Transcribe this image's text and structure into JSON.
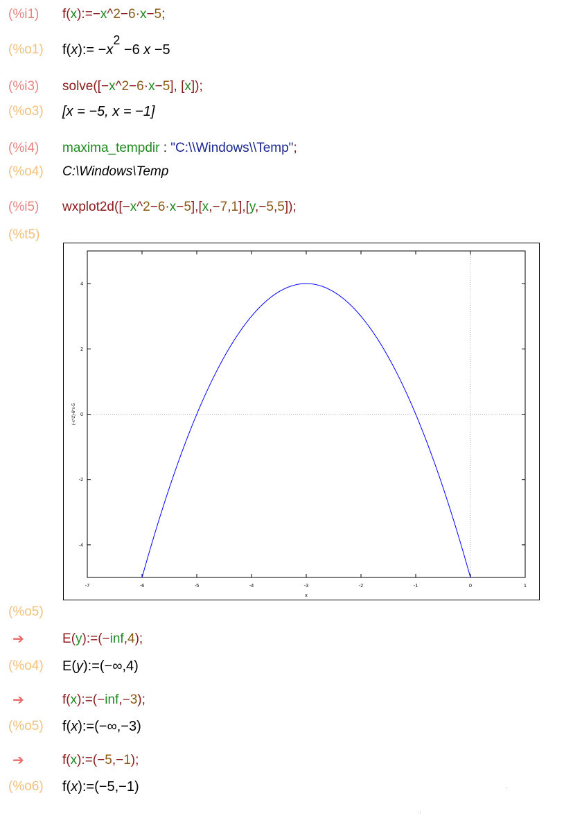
{
  "cells": {
    "i1": {
      "label": "(%i1)"
    },
    "o1": {
      "label": "(%o1)"
    },
    "i3": {
      "label": "(%i3)"
    },
    "o3": {
      "label": "(%o3)",
      "text": "[x = −5, x = −1]"
    },
    "i4": {
      "label": "(%i4)"
    },
    "o4": {
      "label": "(%o4)",
      "text": "C:\\Windows\\Temp"
    },
    "i5": {
      "label": "(%i5)"
    },
    "t5": {
      "label": "(%t5)"
    },
    "o5": {
      "label": "(%o5)"
    },
    "a1": {
      "label": "➔"
    },
    "o4b": {
      "label": "(%o4)"
    },
    "a2": {
      "label": "➔"
    },
    "o5b": {
      "label": "(%o5)"
    },
    "a3": {
      "label": "➔"
    },
    "o6": {
      "label": "(%o6)"
    }
  },
  "tokens": {
    "i1": [
      "f",
      "(",
      "x",
      "):=−",
      "x",
      "^",
      "2",
      "−",
      "6",
      "·",
      "x",
      "−",
      "5",
      ";"
    ],
    "o1": [
      "f(",
      "x",
      "):= −",
      "x",
      "2",
      " −6 ",
      "x",
      " −5"
    ],
    "i3": [
      "solve",
      "([−",
      "x",
      "^",
      "2",
      "−",
      "6",
      "·",
      "x",
      "−",
      "5",
      "], [",
      "x",
      "]);"
    ],
    "i4": [
      "maxima_tempdir",
      " : ",
      "\"C:\\\\Windows\\\\Temp\"",
      ";"
    ],
    "i5": [
      "wxplot2d",
      "([−",
      "x",
      "^",
      "2",
      "−",
      "6",
      "·",
      "x",
      "−",
      "5",
      "],[",
      "x",
      ",−",
      "7",
      ",",
      "1",
      "],[",
      "y",
      ",−",
      "5",
      ",",
      "5",
      "]);"
    ],
    "e1": [
      "E",
      "(",
      "y",
      "):=(−",
      "inf",
      ",",
      "4",
      ");"
    ],
    "r1": [
      "E(",
      "y",
      "):=(−∞,4)"
    ],
    "e2": [
      "f",
      "(",
      "x",
      "):=(−",
      "inf",
      ",−",
      "3",
      ");"
    ],
    "r2": [
      "f(",
      "x",
      "):=(−∞,−3)"
    ],
    "e3": [
      "f",
      "(",
      "x",
      "):=(−",
      "5",
      ",−",
      "1",
      ");"
    ],
    "r3": [
      "f(",
      "x",
      "):=(−5,−1)"
    ]
  },
  "chart_data": {
    "type": "line",
    "title": "",
    "xlabel": "x",
    "ylabel": "(-x^2)-6*x-5",
    "xlim": [
      -7,
      1
    ],
    "ylim": [
      -5,
      5
    ],
    "xticks": [
      "-7",
      "-6",
      "-5",
      "-4",
      "-3",
      "-2",
      "-1",
      "0",
      "1"
    ],
    "yticks": [
      "4",
      "2",
      "0",
      "-2",
      "-4"
    ],
    "grid": false,
    "zero_axes": true,
    "series": [
      {
        "function": "-x^2-6x-5",
        "x_range": [
          -6,
          0
        ],
        "color": "#0000ff"
      }
    ]
  },
  "colors": {
    "input_label": "#e8847f",
    "output_label": "#f2c07a",
    "arrow": "#ee6a6a",
    "operator": "#8b1a1a",
    "variable": "#1f8a1f",
    "number": "#8a5a12",
    "string": "#1b2790",
    "curve": "#0000ff"
  }
}
